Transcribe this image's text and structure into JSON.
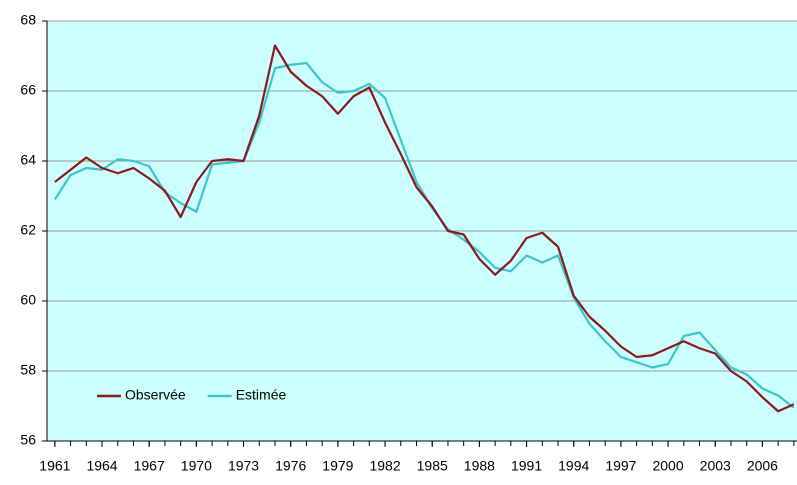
{
  "chart_data": {
    "type": "line",
    "x": [
      1961,
      1962,
      1963,
      1964,
      1965,
      1966,
      1967,
      1968,
      1969,
      1970,
      1971,
      1972,
      1973,
      1974,
      1975,
      1976,
      1977,
      1978,
      1979,
      1980,
      1981,
      1982,
      1983,
      1984,
      1985,
      1986,
      1987,
      1988,
      1989,
      1990,
      1991,
      1992,
      1993,
      1994,
      1995,
      1996,
      1997,
      1998,
      1999,
      2000,
      2001,
      2002,
      2003,
      2004,
      2005,
      2006,
      2007,
      2008
    ],
    "series": [
      {
        "name": "Observée",
        "color": "#8b1a1a",
        "values": [
          63.4,
          63.75,
          64.1,
          63.8,
          63.65,
          63.8,
          63.5,
          63.15,
          62.4,
          63.4,
          64.0,
          64.05,
          64.0,
          65.3,
          67.3,
          66.55,
          66.15,
          65.85,
          65.35,
          65.85,
          66.1,
          65.1,
          64.2,
          63.25,
          62.7,
          62.0,
          61.9,
          61.2,
          60.75,
          61.15,
          61.8,
          61.95,
          61.55,
          60.15,
          59.55,
          59.15,
          58.7,
          58.4,
          58.45,
          58.65,
          58.85,
          58.65,
          58.5,
          58.0,
          57.7,
          57.25,
          56.85,
          57.05
        ]
      },
      {
        "name": "Estimée",
        "color": "#3fc4cc",
        "values": [
          62.9,
          63.6,
          63.8,
          63.75,
          64.05,
          64.0,
          63.85,
          63.1,
          62.8,
          62.55,
          63.9,
          63.95,
          64.0,
          65.1,
          66.65,
          66.75,
          66.8,
          66.25,
          65.95,
          66.0,
          66.2,
          65.8,
          64.6,
          63.4,
          62.65,
          62.05,
          61.75,
          61.4,
          60.95,
          60.85,
          61.3,
          61.1,
          61.3,
          60.1,
          59.35,
          58.85,
          58.4,
          58.25,
          58.1,
          58.2,
          59.0,
          59.1,
          58.6,
          58.1,
          57.9,
          57.5,
          57.3,
          56.95
        ]
      }
    ],
    "xlim": [
      1960.5,
      2008.2
    ],
    "xticks": [
      1961,
      1964,
      1967,
      1970,
      1973,
      1976,
      1979,
      1982,
      1985,
      1988,
      1991,
      1994,
      1997,
      2000,
      2003,
      2006
    ],
    "ylim": [
      56,
      68
    ],
    "yticks": [
      56,
      58,
      60,
      62,
      64,
      66,
      68
    ],
    "grid": true,
    "legend": "lower left"
  }
}
